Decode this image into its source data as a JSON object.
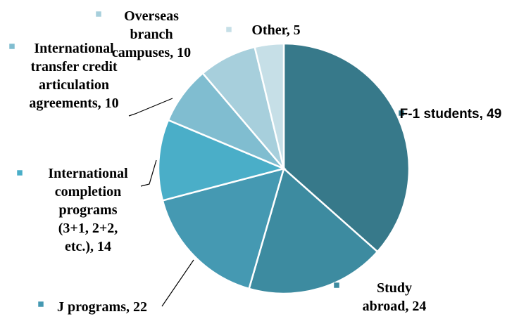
{
  "chart_data": {
    "type": "pie",
    "categories": [
      "F-1 students, 49",
      "Study abroad, 24",
      "J programs, 22",
      "International completion programs (3+1, 2+2, etc.), 14",
      "International transfer credit articulation agreements, 10",
      "Overseas branch campuses, 10",
      "Other, 5"
    ],
    "values": [
      49,
      24,
      22,
      14,
      10,
      10,
      5
    ],
    "colors": [
      "#37798a",
      "#3d8ba0",
      "#4599b2",
      "#4aaec8",
      "#80bdd0",
      "#a7cfdc",
      "#c6dfe7"
    ]
  }
}
